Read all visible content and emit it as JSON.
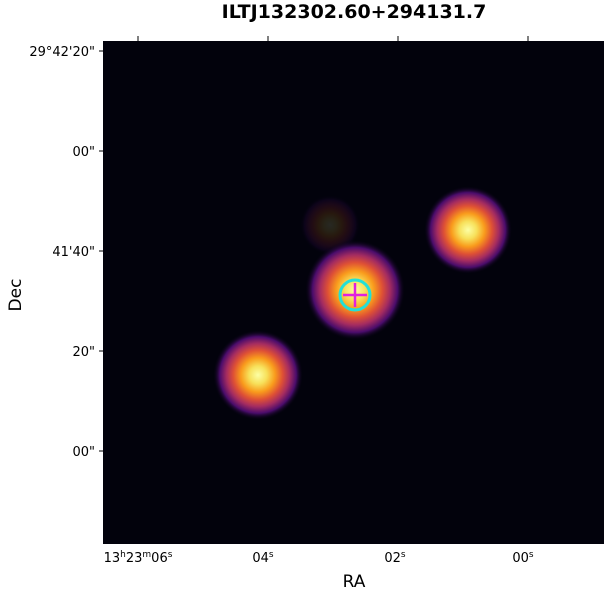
{
  "title": "ILTJ132302.60+294131.7",
  "axes": {
    "x_label": "RA",
    "y_label": "Dec",
    "y_ticks": [
      "29°42'20\"",
      "00\"",
      "41'40\"",
      "20\"",
      "00\""
    ],
    "x_ticks": [
      [
        "13",
        "h",
        "23",
        "m",
        "06",
        "s"
      ],
      [
        "04",
        "s"
      ],
      [
        "02",
        "s"
      ],
      [
        "00",
        "s"
      ]
    ]
  }
}
